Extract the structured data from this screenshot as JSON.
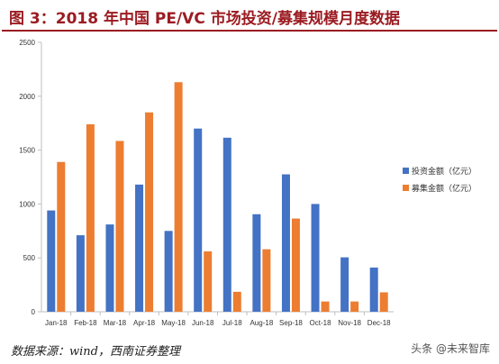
{
  "title": "图 3：2018 年中国 PE/VC 市场投资/募集规模月度数据",
  "source": "数据来源：wind，西南证券整理",
  "watermark": "头条 @未来智库",
  "chart_data": {
    "type": "bar",
    "title": "",
    "xlabel": "",
    "ylabel": "",
    "ylim": [
      0,
      2500
    ],
    "yticks": [
      0,
      500,
      1000,
      1500,
      2000,
      2500
    ],
    "grid": false,
    "legend_position": "right",
    "categories": [
      "Jan-18",
      "Feb-18",
      "Mar-18",
      "Apr-18",
      "May-18",
      "Jun-18",
      "Jul-18",
      "Aug-18",
      "Sep-18",
      "Oct-18",
      "Nov-18",
      "Dec-18"
    ],
    "series": [
      {
        "name": "投资金额（亿元）",
        "color": "#4472c4",
        "values": [
          940,
          710,
          810,
          1180,
          750,
          1700,
          1615,
          905,
          1275,
          1000,
          505,
          410
        ]
      },
      {
        "name": "募集金额（亿元）",
        "color": "#ed7d31",
        "values": [
          1390,
          1740,
          1585,
          1850,
          2130,
          560,
          185,
          580,
          865,
          95,
          95,
          180
        ]
      }
    ]
  }
}
